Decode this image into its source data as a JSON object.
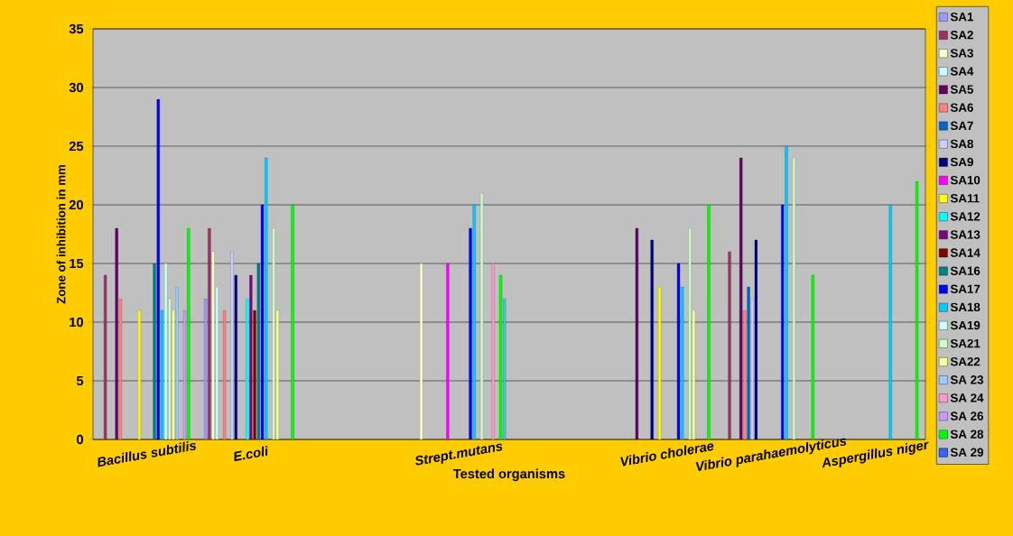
{
  "chart_data": {
    "type": "bar",
    "xlabel": "Tested organisms",
    "ylabel": "Zone of inhibition in mm",
    "categories": [
      "Bacillus subtilis",
      "E.coli",
      null,
      "Strept.mutans",
      null,
      "Vibrio cholerae",
      "Vibrio parahaemolyticus",
      "Aspergillus niger"
    ],
    "ylim": [
      0,
      35
    ],
    "yticks": [
      0,
      5,
      10,
      15,
      20,
      25,
      30,
      35
    ],
    "grid": "y",
    "legend": "right",
    "series": [
      {
        "name": "SA1",
        "color": "#9999ff",
        "values": [
          null,
          12,
          null,
          null,
          null,
          null,
          null,
          null
        ]
      },
      {
        "name": "SA2",
        "color": "#993366",
        "values": [
          14,
          18,
          null,
          null,
          null,
          null,
          16,
          null
        ]
      },
      {
        "name": "SA3",
        "color": "#ffffcc",
        "values": [
          null,
          16,
          null,
          15,
          null,
          null,
          null,
          null
        ]
      },
      {
        "name": "SA4",
        "color": "#ccffff",
        "values": [
          null,
          13,
          null,
          null,
          null,
          null,
          null,
          null
        ]
      },
      {
        "name": "SA5",
        "color": "#660066",
        "values": [
          18,
          null,
          null,
          null,
          null,
          18,
          24,
          null
        ]
      },
      {
        "name": "SA6",
        "color": "#ff8080",
        "values": [
          12,
          11,
          null,
          null,
          null,
          null,
          11,
          null
        ]
      },
      {
        "name": "SA7",
        "color": "#0066cc",
        "values": [
          null,
          null,
          null,
          null,
          null,
          null,
          13,
          null
        ]
      },
      {
        "name": "SA8",
        "color": "#ccccff",
        "values": [
          null,
          16,
          null,
          null,
          null,
          null,
          12,
          null
        ]
      },
      {
        "name": "SA9",
        "color": "#000080",
        "values": [
          null,
          14,
          null,
          null,
          null,
          17,
          17,
          null
        ]
      },
      {
        "name": "SA10",
        "color": "#ff00ff",
        "values": [
          null,
          null,
          null,
          15,
          null,
          null,
          null,
          null
        ]
      },
      {
        "name": "SA11",
        "color": "#ffff00",
        "values": [
          11,
          null,
          null,
          null,
          null,
          13,
          null,
          null
        ]
      },
      {
        "name": "SA12",
        "color": "#00ffff",
        "values": [
          null,
          12,
          null,
          null,
          null,
          null,
          null,
          null
        ]
      },
      {
        "name": "SA13",
        "color": "#800080",
        "values": [
          null,
          14,
          null,
          null,
          null,
          null,
          null,
          null
        ]
      },
      {
        "name": "SA14",
        "color": "#800000",
        "values": [
          null,
          11,
          null,
          null,
          null,
          null,
          null,
          null
        ]
      },
      {
        "name": "SA16",
        "color": "#008080",
        "values": [
          15,
          15,
          null,
          null,
          null,
          null,
          null,
          null
        ]
      },
      {
        "name": "SA17",
        "color": "#0000ff",
        "values": [
          29,
          20,
          null,
          18,
          null,
          15,
          20,
          null
        ]
      },
      {
        "name": "SA18",
        "color": "#00ccff",
        "values": [
          11,
          24,
          null,
          20,
          null,
          13,
          25,
          20
        ]
      },
      {
        "name": "SA19",
        "color": "#ccffff",
        "values": [
          15,
          null,
          null,
          null,
          null,
          null,
          null,
          null
        ]
      },
      {
        "name": "SA21",
        "color": "#ccffcc",
        "values": [
          12,
          18,
          null,
          21,
          null,
          18,
          24,
          null
        ]
      },
      {
        "name": "SA22",
        "color": "#ffff99",
        "values": [
          11,
          11,
          null,
          null,
          null,
          11,
          null,
          null
        ]
      },
      {
        "name": "SA 23",
        "color": "#99ccff",
        "values": [
          13,
          null,
          null,
          null,
          null,
          null,
          null,
          null
        ]
      },
      {
        "name": "SA 24",
        "color": "#ff99cc",
        "values": [
          null,
          null,
          null,
          15,
          null,
          null,
          null,
          null
        ]
      },
      {
        "name": "SA 26",
        "color": "#cc99ff",
        "values": [
          11,
          null,
          null,
          null,
          null,
          null,
          null,
          null
        ]
      },
      {
        "name": "SA 28",
        "color": "#00ff00",
        "values": [
          18,
          20,
          null,
          14,
          null,
          20,
          14,
          22
        ]
      },
      {
        "name": "SA 29",
        "color": "#3366ff",
        "values": [
          null,
          null,
          null,
          null,
          null,
          null,
          null,
          null
        ]
      },
      {
        "color": "#33cccc",
        "values": [
          null,
          null,
          null,
          12,
          null,
          null,
          null,
          null
        ]
      }
    ]
  }
}
